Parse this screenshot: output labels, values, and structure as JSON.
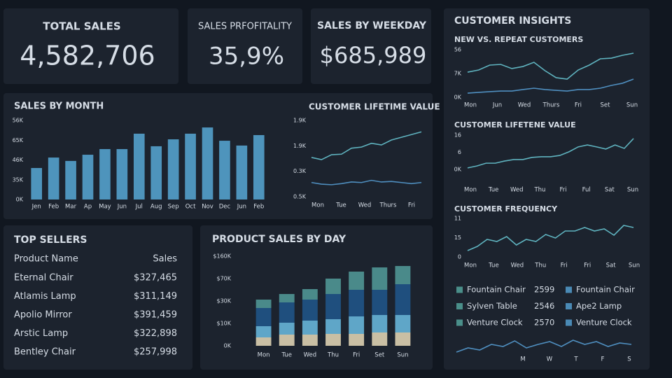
{
  "kpis": [
    {
      "title": "TOTAL SALES",
      "value": "4,582,706"
    },
    {
      "title": "SALES PRFOFITALITY",
      "value": "35,9%"
    },
    {
      "title": "SALES BY WEEKDAY",
      "value": "$685,989"
    }
  ],
  "insights_title": "CUSTOMER INSIGHTS",
  "top_sellers": {
    "title": "TOP SELLERS",
    "header": [
      "Product Name",
      "Sales"
    ],
    "rows": [
      [
        "Eternal Chair",
        "$327,465"
      ],
      [
        "Atlamis Lamp",
        "$311,149"
      ],
      [
        "Apolio Mirror",
        "$391,459"
      ],
      [
        "Arstic Lamp",
        "$322,898"
      ],
      [
        "Bentley Chair",
        "$257,998"
      ]
    ]
  },
  "legend_items": [
    {
      "name": "Fountain Chair",
      "value": "2599",
      "color": "#4a8f8a"
    },
    {
      "name": "Fountain Chair",
      "color": "#4a8ab5"
    },
    {
      "name": "Sylven Table",
      "value": "2546",
      "color": "#4a8f8a"
    },
    {
      "name": "Ape2 Lamp",
      "color": "#4a8ab5"
    },
    {
      "name": "Venture Clock",
      "value": "2570",
      "color": "#4a8f8a"
    },
    {
      "name": "Venture Clock",
      "color": "#4a8ab5"
    }
  ],
  "chart_data": [
    {
      "type": "bar",
      "title": "SALES BY MONTH",
      "categories": [
        "Jen",
        "Feb",
        "Mar",
        "Ap",
        "May",
        "Jun",
        "Jul",
        "Aug",
        "Sep",
        "Oct",
        "Nov",
        "Dec",
        "Jun",
        "Feb"
      ],
      "values": [
        22300,
        29700,
        27300,
        31700,
        35700,
        35700,
        46600,
        37700,
        42600,
        46600,
        51000,
        41600,
        38200,
        45600
      ],
      "color": "#4e94bc",
      "ylim": [
        0,
        56000
      ],
      "y_labels": [
        "56K",
        "65K",
        "46K",
        "35K",
        "0K"
      ]
    },
    {
      "type": "line",
      "title": "CUSTOMER LIFETIME VALUE",
      "x_labels": [
        "Mon",
        "Tue",
        "Wed",
        "Thurs",
        "Fri"
      ],
      "ylim": [
        0.5,
        1.9
      ],
      "y_labels": [
        "1.9K",
        "1.9K",
        "0.3K",
        "0.5K"
      ],
      "series": [
        {
          "color": "#5fb3bf",
          "values": [
            1.22,
            1.18,
            1.27,
            1.28,
            1.39,
            1.41,
            1.48,
            1.45,
            1.54,
            1.59,
            1.64,
            1.69
          ]
        },
        {
          "color": "#4f8fc0",
          "values": [
            0.76,
            0.73,
            0.72,
            0.74,
            0.77,
            0.76,
            0.8,
            0.77,
            0.78,
            0.76,
            0.74,
            0.76
          ]
        }
      ]
    },
    {
      "type": "stacked_bar",
      "title": "PRODUCT SALES BY DAY",
      "categories": [
        "Mon",
        "Tue",
        "Wed",
        "Thu",
        "Fri",
        "Set",
        "Sun"
      ],
      "ylim": [
        0,
        160
      ],
      "y_labels": [
        "$160K",
        "$70K",
        "$30K",
        "$10K",
        "0K"
      ],
      "series": [
        {
          "color": "#c9bfa4",
          "values": [
            15,
            20,
            20,
            21.25,
            21.25,
            23.75,
            23.75
          ]
        },
        {
          "color": "#5fa6c8",
          "values": [
            20,
            21.25,
            25,
            26.25,
            31.25,
            31.25,
            31.25
          ]
        },
        {
          "color": "#1f4f7e",
          "values": [
            32.5,
            36.25,
            37.5,
            45,
            47.5,
            45,
            55
          ]
        },
        {
          "color": "#4a8a8a",
          "values": [
            15,
            15,
            18.75,
            27.5,
            32.5,
            40,
            32.5
          ]
        }
      ]
    },
    {
      "type": "line",
      "title": "NEW VS. REPEAT CUSTOMERS",
      "x_labels": [
        "Mon",
        "Jun",
        "Wed",
        "Thurs",
        "Fri",
        "Set",
        "Sun"
      ],
      "ylim": [
        0,
        56
      ],
      "y_labels": [
        "56",
        "7K",
        "0K"
      ],
      "series": [
        {
          "color": "#5fb3bf",
          "values": [
            29.6,
            32.1,
            37.9,
            38.7,
            33.8,
            36.2,
            41.2,
            31.3,
            23.1,
            21.4,
            32.1,
            37.9,
            45.3,
            46.1,
            49.4,
            51.9
          ]
        },
        {
          "color": "#4f8fc0",
          "values": [
            4.9,
            5.8,
            6.6,
            7.4,
            7.4,
            9.1,
            10.7,
            9.1,
            8.2,
            7.4,
            9.1,
            9.1,
            10.7,
            14,
            16.5,
            21.4
          ]
        }
      ]
    },
    {
      "type": "line",
      "title": "CUSTOMER LIFETENE VALUE",
      "x_labels": [
        "Mon",
        "Tue",
        "Wed",
        "Thu",
        "Fri",
        "Ful",
        "Sat",
        "Sun"
      ],
      "ylim": [
        0,
        16
      ],
      "y_labels": [
        "16",
        "6",
        "0K"
      ],
      "series": [
        {
          "color": "#5fb3bf",
          "values": [
            0.7,
            1.6,
            2.9,
            2.9,
            3.9,
            4.6,
            4.6,
            5.6,
            5.9,
            5.9,
            6.5,
            8.2,
            10.5,
            11.4,
            10.5,
            9.5,
            11.4,
            9.8,
            14.4
          ]
        }
      ]
    },
    {
      "type": "line",
      "title": "CUSTOMER FREQUENCY",
      "x_labels": [
        "Mon",
        "Tue",
        "Wed",
        "Thu",
        "Fri",
        "Fri",
        "Sat",
        "Sun"
      ],
      "ylim": [
        0,
        11
      ],
      "y_labels": [
        "11",
        "15",
        "0"
      ],
      "series": [
        {
          "color": "#5fb3bf",
          "values": [
            1.8,
            3,
            5,
            4.4,
            5.8,
            3.4,
            5,
            4.4,
            6.4,
            5.4,
            7.4,
            7.4,
            8.4,
            7.4,
            8,
            6.2,
            9,
            8.4
          ]
        }
      ]
    },
    {
      "type": "line",
      "x_labels": [
        "M",
        "W",
        "T",
        "F",
        "S"
      ],
      "ylim": [
        0,
        12
      ],
      "series": [
        {
          "color": "#4f8fc0",
          "values": [
            2,
            5,
            3.5,
            7.5,
            6,
            10,
            5,
            7.5,
            9.5,
            6,
            10.5,
            7.5,
            9.5,
            6,
            8.5,
            7.5
          ]
        }
      ]
    }
  ]
}
